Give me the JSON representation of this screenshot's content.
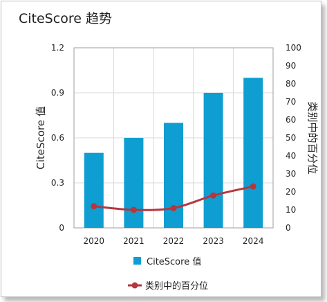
{
  "title": "CiteScore 趋势",
  "chart_data": {
    "type": "bar",
    "title": "CiteScore 趋势",
    "categories": [
      "2020",
      "2021",
      "2022",
      "2023",
      "2024"
    ],
    "ylabel": "CiteScore 值",
    "ylabel_right": "类别中的百分位",
    "ylim": [
      0,
      1.2
    ],
    "ylim_right": [
      0,
      100
    ],
    "yticks": [
      "1.2",
      "0.9",
      "0.6",
      "0.3",
      "0"
    ],
    "yticks_right": [
      "100",
      "90",
      "80",
      "70",
      "60",
      "50",
      "40",
      "30",
      "20",
      "10",
      "0"
    ],
    "grid": true,
    "legend_position": "bottom",
    "series": [
      {
        "name": "CiteScore 值",
        "kind": "bar",
        "axis": "left",
        "color": "#0f9ed2",
        "values": [
          0.5,
          0.6,
          0.7,
          0.9,
          1.0
        ]
      },
      {
        "name": "类别中的百分位",
        "kind": "line",
        "axis": "right",
        "color": "#b5373d",
        "values": [
          12,
          10,
          11,
          18,
          23
        ]
      }
    ]
  }
}
